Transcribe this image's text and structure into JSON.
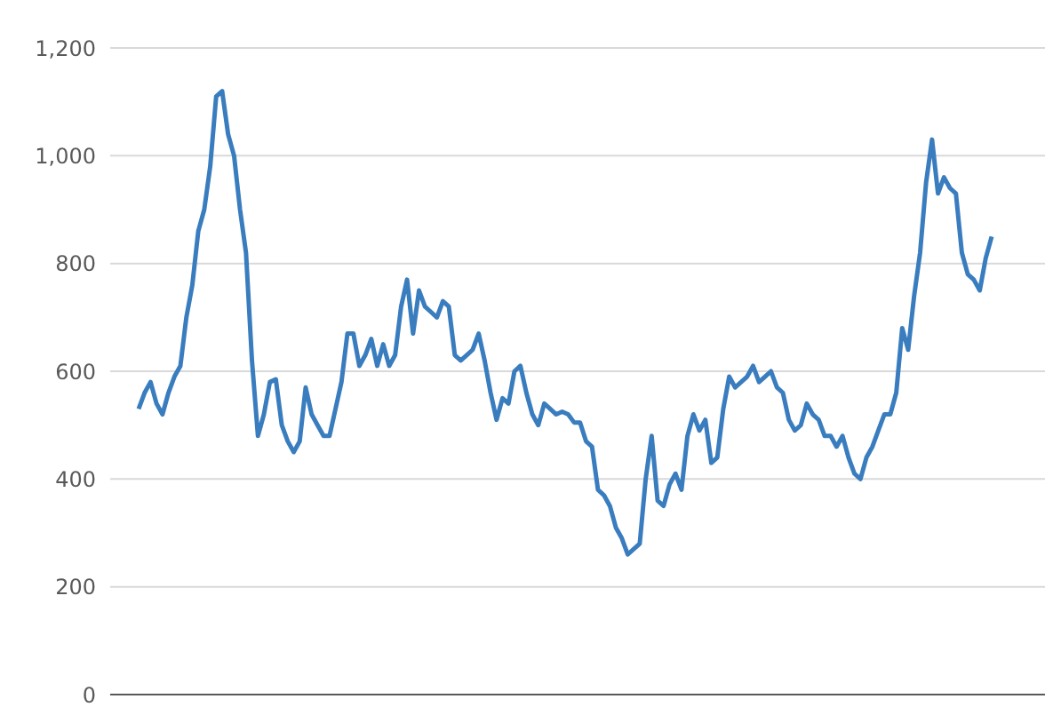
{
  "chart_data": {
    "type": "line",
    "categories": [
      null,
      null,
      null,
      null,
      null,
      null,
      null,
      null,
      null,
      null,
      null,
      null,
      null,
      null,
      null,
      null,
      null,
      null,
      null,
      null,
      null,
      null,
      null,
      null,
      null,
      null,
      null,
      null,
      null,
      null,
      null,
      null,
      null,
      null,
      null,
      null,
      null,
      null,
      null,
      null,
      null,
      null,
      null,
      null,
      null,
      null,
      null,
      null,
      null,
      null,
      null,
      null,
      null,
      null,
      null,
      null,
      null,
      null,
      null,
      null,
      null,
      null,
      null,
      null,
      null,
      null,
      null,
      null,
      null,
      null,
      null,
      null,
      null,
      null,
      null,
      null,
      null,
      null,
      null,
      null,
      null,
      null,
      null,
      null,
      null,
      null,
      null,
      null,
      null,
      null,
      null,
      null,
      null,
      null,
      null,
      null,
      null,
      null,
      null,
      null,
      null,
      null,
      null,
      null,
      null,
      null,
      null,
      null,
      null,
      null,
      null,
      null,
      null,
      null,
      null,
      null,
      null,
      null,
      null,
      null,
      null,
      null,
      null,
      null,
      null,
      null,
      null,
      null,
      null,
      null,
      null,
      null,
      null,
      null,
      null,
      null,
      null,
      null,
      null,
      null,
      null,
      null,
      null,
      null
    ],
    "series": [
      {
        "color": "#3a7dbf",
        "values": [
          530,
          560,
          580,
          540,
          520,
          560,
          590,
          610,
          700,
          760,
          860,
          900,
          980,
          1110,
          1120,
          1040,
          1000,
          900,
          820,
          620,
          480,
          520,
          580,
          585,
          500,
          470,
          450,
          470,
          570,
          520,
          500,
          480,
          480,
          530,
          580,
          670,
          670,
          610,
          630,
          660,
          610,
          650,
          610,
          630,
          720,
          770,
          670,
          750,
          720,
          710,
          700,
          730,
          720,
          630,
          620,
          630,
          640,
          670,
          620,
          560,
          510,
          550,
          540,
          600,
          610,
          560,
          520,
          500,
          540,
          530,
          520,
          525,
          520,
          505,
          505,
          470,
          460,
          380,
          370,
          350,
          310,
          290,
          260,
          270,
          280,
          400,
          480,
          360,
          350,
          390,
          410,
          380,
          480,
          520,
          490,
          510,
          430,
          440,
          530,
          590,
          570,
          580,
          590,
          610,
          580,
          590,
          600,
          570,
          560,
          510,
          490,
          500,
          540,
          520,
          510,
          480,
          480,
          460,
          480,
          440,
          410,
          400,
          440,
          460,
          490,
          520,
          520,
          560,
          680,
          640,
          740,
          820,
          950,
          1030,
          930,
          960,
          940,
          930,
          820,
          780,
          770,
          750,
          810,
          850
        ]
      }
    ],
    "ylim": [
      0,
      1200
    ],
    "yticks": [
      {
        "value": 0,
        "label": "0"
      },
      {
        "value": 200,
        "label": "200"
      },
      {
        "value": 400,
        "label": "400"
      },
      {
        "value": 600,
        "label": "600"
      },
      {
        "value": 800,
        "label": "800"
      },
      {
        "value": 1000,
        "label": "1,000"
      },
      {
        "value": 1200,
        "label": "1,200"
      }
    ],
    "grid": "y",
    "marker": "none",
    "line_style": "solid"
  }
}
